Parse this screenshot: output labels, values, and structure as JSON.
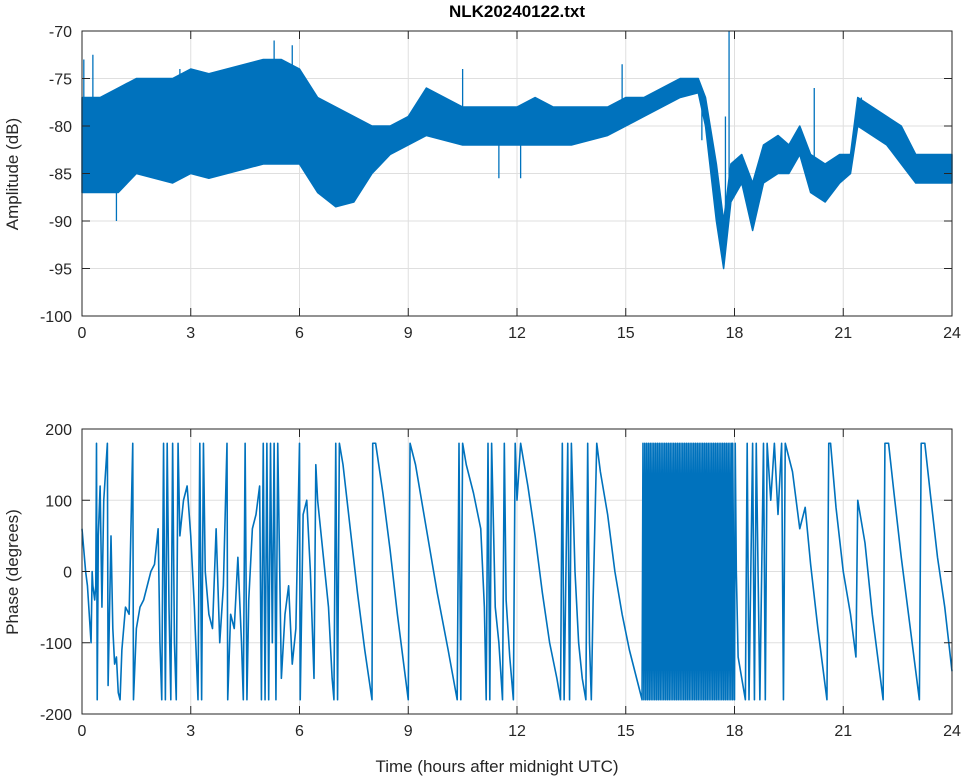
{
  "chart_data": [
    {
      "type": "area",
      "title": "NLK20240122.txt",
      "xlabel": "",
      "ylabel": "Amplitude (dB)",
      "xlim": [
        0,
        24
      ],
      "ylim": [
        -100,
        -70
      ],
      "xticks": [
        "0",
        "3",
        "6",
        "9",
        "12",
        "15",
        "18",
        "21",
        "24"
      ],
      "yticks": [
        "-70",
        "-75",
        "-80",
        "-85",
        "-90",
        "-95",
        "-100"
      ],
      "grid": true,
      "color": "#0072BD",
      "envelope": {
        "x": [
          0,
          0.5,
          1,
          1.5,
          2,
          2.5,
          3,
          3.5,
          4,
          4.5,
          5,
          5.5,
          6,
          6.5,
          7,
          7.5,
          8,
          8.5,
          9,
          9.5,
          10,
          10.5,
          11,
          11.5,
          12,
          12.5,
          13,
          13.5,
          14,
          14.5,
          15,
          15.5,
          16,
          16.5,
          17,
          17.2,
          17.5,
          17.7,
          17.9,
          18.2,
          18.5,
          18.8,
          19.2,
          19.5,
          19.8,
          20.1,
          20.5,
          20.9,
          21.2,
          21.4,
          21.8,
          22.2,
          22.6,
          23,
          23.5,
          24
        ],
        "upper": [
          -77,
          -77,
          -76,
          -75,
          -75,
          -75,
          -74,
          -74.5,
          -74,
          -73.5,
          -73,
          -73,
          -74,
          -77,
          -78,
          -79,
          -80,
          -80,
          -79,
          -76,
          -77,
          -78,
          -78,
          -78,
          -78,
          -77,
          -78,
          -78,
          -78,
          -78,
          -77,
          -77,
          -76,
          -75,
          -75,
          -77,
          -84,
          -90,
          -84,
          -83,
          -86,
          -82,
          -81,
          -82,
          -80,
          -83,
          -84,
          -83,
          -83,
          -77,
          -78,
          -79,
          -80,
          -83,
          -83,
          -83
        ],
        "lower": [
          -87,
          -87,
          -87,
          -85,
          -85.5,
          -86,
          -85,
          -85.5,
          -85,
          -84.5,
          -84,
          -84,
          -84,
          -87,
          -88.5,
          -88,
          -85,
          -83,
          -82,
          -81,
          -81.5,
          -82,
          -82,
          -82,
          -82,
          -82,
          -82,
          -82,
          -81.5,
          -81,
          -80,
          -79,
          -78,
          -77,
          -76.5,
          -80,
          -90,
          -95,
          -88,
          -86,
          -91,
          -86,
          -85,
          -85,
          -83,
          -87,
          -88,
          -86,
          -85,
          -80,
          -81,
          -82,
          -84,
          -86,
          -86,
          -86
        ]
      },
      "spikes": [
        [
          0.05,
          -73
        ],
        [
          0.3,
          -72.5
        ],
        [
          0.95,
          -90
        ],
        [
          2.7,
          -74
        ],
        [
          5.3,
          -71
        ],
        [
          5.8,
          -71.5
        ],
        [
          10.5,
          -74
        ],
        [
          11.5,
          -85.5
        ],
        [
          12.1,
          -85.5
        ],
        [
          14.9,
          -73.5
        ],
        [
          17.1,
          -81.5
        ],
        [
          17.85,
          -70
        ],
        [
          17.75,
          -79
        ],
        [
          20.2,
          -76
        ],
        [
          21.5,
          -77
        ]
      ]
    },
    {
      "type": "line",
      "title": "",
      "xlabel": "Time (hours after midnight UTC)",
      "ylabel": "Phase (degrees)",
      "xlim": [
        0,
        24
      ],
      "ylim": [
        -200,
        200
      ],
      "xticks": [
        "0",
        "3",
        "6",
        "9",
        "12",
        "15",
        "18",
        "21",
        "24"
      ],
      "yticks": [
        "200",
        "100",
        "0",
        "-100",
        "-200"
      ],
      "grid": true,
      "color": "#0072BD",
      "points": [
        [
          0,
          60
        ],
        [
          0.1,
          0
        ],
        [
          0.15,
          -20
        ],
        [
          0.2,
          -60
        ],
        [
          0.25,
          -100
        ],
        [
          0.28,
          0
        ],
        [
          0.3,
          -20
        ],
        [
          0.35,
          -40
        ],
        [
          0.38,
          -20
        ],
        [
          0.4,
          180
        ],
        [
          0.42,
          -180
        ],
        [
          0.45,
          50
        ],
        [
          0.5,
          120
        ],
        [
          0.55,
          -50
        ],
        [
          0.6,
          100
        ],
        [
          0.7,
          180
        ],
        [
          0.72,
          -160
        ],
        [
          0.8,
          50
        ],
        [
          0.85,
          -80
        ],
        [
          0.9,
          -130
        ],
        [
          0.95,
          -120
        ],
        [
          1.0,
          -170
        ],
        [
          1.05,
          -180
        ],
        [
          1.1,
          -110
        ],
        [
          1.2,
          -50
        ],
        [
          1.3,
          -60
        ],
        [
          1.4,
          180
        ],
        [
          1.42,
          -180
        ],
        [
          1.5,
          -80
        ],
        [
          1.6,
          -50
        ],
        [
          1.7,
          -40
        ],
        [
          1.8,
          -20
        ],
        [
          1.9,
          0
        ],
        [
          2.0,
          10
        ],
        [
          2.1,
          60
        ],
        [
          2.15,
          -100
        ],
        [
          2.2,
          -180
        ],
        [
          2.25,
          180
        ],
        [
          2.3,
          -180
        ],
        [
          2.35,
          180
        ],
        [
          2.4,
          -50
        ],
        [
          2.45,
          -180
        ],
        [
          2.5,
          180
        ],
        [
          2.55,
          -100
        ],
        [
          2.6,
          -180
        ],
        [
          2.65,
          180
        ],
        [
          2.7,
          50
        ],
        [
          2.8,
          100
        ],
        [
          2.9,
          120
        ],
        [
          3.0,
          50
        ],
        [
          3.1,
          -50
        ],
        [
          3.2,
          -180
        ],
        [
          3.25,
          180
        ],
        [
          3.3,
          -180
        ],
        [
          3.35,
          180
        ],
        [
          3.4,
          0
        ],
        [
          3.5,
          -60
        ],
        [
          3.6,
          -80
        ],
        [
          3.7,
          60
        ],
        [
          3.8,
          -100
        ],
        [
          3.9,
          -20
        ],
        [
          4.0,
          180
        ],
        [
          4.02,
          -180
        ],
        [
          4.1,
          -60
        ],
        [
          4.2,
          -80
        ],
        [
          4.3,
          20
        ],
        [
          4.4,
          -100
        ],
        [
          4.45,
          -180
        ],
        [
          4.5,
          180
        ],
        [
          4.55,
          -180
        ],
        [
          4.6,
          -40
        ],
        [
          4.7,
          60
        ],
        [
          4.8,
          80
        ],
        [
          4.9,
          120
        ],
        [
          4.95,
          -180
        ],
        [
          5.0,
          180
        ],
        [
          5.05,
          -180
        ],
        [
          5.1,
          180
        ],
        [
          5.15,
          -180
        ],
        [
          5.2,
          180
        ],
        [
          5.25,
          -100
        ],
        [
          5.3,
          180
        ],
        [
          5.35,
          -180
        ],
        [
          5.4,
          180
        ],
        [
          5.5,
          -150
        ],
        [
          5.6,
          -60
        ],
        [
          5.7,
          -20
        ],
        [
          5.8,
          -130
        ],
        [
          5.9,
          -80
        ],
        [
          6.0,
          180
        ],
        [
          6.02,
          -180
        ],
        [
          6.1,
          80
        ],
        [
          6.2,
          100
        ],
        [
          6.3,
          0
        ],
        [
          6.4,
          -150
        ],
        [
          6.45,
          150
        ],
        [
          6.5,
          100
        ],
        [
          6.6,
          50
        ],
        [
          6.7,
          0
        ],
        [
          6.8,
          -50
        ],
        [
          6.9,
          -150
        ],
        [
          6.95,
          -180
        ],
        [
          7.0,
          180
        ],
        [
          7.05,
          -180
        ],
        [
          7.1,
          180
        ],
        [
          7.2,
          150
        ],
        [
          7.4,
          60
        ],
        [
          7.6,
          -30
        ],
        [
          7.8,
          -110
        ],
        [
          8.0,
          -180
        ],
        [
          8.02,
          180
        ],
        [
          8.1,
          180
        ],
        [
          8.3,
          110
        ],
        [
          8.5,
          30
        ],
        [
          8.7,
          -60
        ],
        [
          8.9,
          -140
        ],
        [
          9.0,
          -180
        ],
        [
          9.05,
          180
        ],
        [
          9.2,
          150
        ],
        [
          9.5,
          60
        ],
        [
          9.8,
          -30
        ],
        [
          10.1,
          -110
        ],
        [
          10.35,
          -180
        ],
        [
          10.4,
          180
        ],
        [
          10.45,
          -180
        ],
        [
          10.5,
          180
        ],
        [
          10.6,
          150
        ],
        [
          10.8,
          110
        ],
        [
          11.0,
          60
        ],
        [
          11.1,
          -50
        ],
        [
          11.15,
          -180
        ],
        [
          11.2,
          180
        ],
        [
          11.25,
          -180
        ],
        [
          11.3,
          180
        ],
        [
          11.4,
          -50
        ],
        [
          11.5,
          -100
        ],
        [
          11.6,
          -180
        ],
        [
          11.65,
          180
        ],
        [
          11.7,
          -40
        ],
        [
          11.8,
          -120
        ],
        [
          11.9,
          -180
        ],
        [
          11.95,
          180
        ],
        [
          12.0,
          100
        ],
        [
          12.1,
          180
        ],
        [
          12.3,
          120
        ],
        [
          12.5,
          50
        ],
        [
          12.7,
          -30
        ],
        [
          12.9,
          -100
        ],
        [
          13.1,
          -150
        ],
        [
          13.2,
          -180
        ],
        [
          13.25,
          180
        ],
        [
          13.3,
          -180
        ],
        [
          13.4,
          180
        ],
        [
          13.45,
          -180
        ],
        [
          13.5,
          180
        ],
        [
          13.6,
          0
        ],
        [
          13.7,
          -100
        ],
        [
          13.8,
          -150
        ],
        [
          13.9,
          -180
        ],
        [
          13.95,
          180
        ],
        [
          14.0,
          -100
        ],
        [
          14.05,
          -180
        ],
        [
          14.1,
          -40
        ],
        [
          14.2,
          180
        ],
        [
          14.3,
          140
        ],
        [
          14.5,
          80
        ],
        [
          14.7,
          0
        ],
        [
          14.9,
          -60
        ],
        [
          15.1,
          -110
        ],
        [
          15.3,
          -150
        ],
        [
          15.45,
          -180
        ]
      ],
      "dense_wrap_region": {
        "x_start": 15.45,
        "x_end": 17.95,
        "step_hours": 0.025,
        "ylim": [
          -180,
          180
        ]
      },
      "points_after": [
        [
          17.95,
          180
        ],
        [
          18.0,
          -180
        ],
        [
          18.02,
          180
        ],
        [
          18.05,
          0
        ],
        [
          18.1,
          -120
        ],
        [
          18.2,
          -150
        ],
        [
          18.3,
          -180
        ],
        [
          18.35,
          180
        ],
        [
          18.4,
          -180
        ],
        [
          18.5,
          180
        ],
        [
          18.55,
          -180
        ],
        [
          18.6,
          180
        ],
        [
          18.7,
          -180
        ],
        [
          18.8,
          180
        ],
        [
          18.85,
          -180
        ],
        [
          18.9,
          180
        ],
        [
          19.0,
          100
        ],
        [
          19.1,
          180
        ],
        [
          19.2,
          80
        ],
        [
          19.3,
          180
        ],
        [
          19.35,
          -180
        ],
        [
          19.4,
          180
        ],
        [
          19.6,
          140
        ],
        [
          19.8,
          60
        ],
        [
          19.95,
          90
        ],
        [
          20.1,
          10
        ],
        [
          20.3,
          -80
        ],
        [
          20.5,
          -160
        ],
        [
          20.55,
          -180
        ],
        [
          20.6,
          180
        ],
        [
          20.65,
          180
        ],
        [
          20.8,
          90
        ],
        [
          21.0,
          0
        ],
        [
          21.2,
          -60
        ],
        [
          21.35,
          -120
        ],
        [
          21.4,
          100
        ],
        [
          21.6,
          40
        ],
        [
          21.8,
          -60
        ],
        [
          22.0,
          -140
        ],
        [
          22.1,
          -180
        ],
        [
          22.15,
          180
        ],
        [
          22.25,
          180
        ],
        [
          22.4,
          110
        ],
        [
          22.6,
          20
        ],
        [
          22.8,
          -60
        ],
        [
          23.0,
          -140
        ],
        [
          23.1,
          -180
        ],
        [
          23.15,
          180
        ],
        [
          23.25,
          180
        ],
        [
          23.4,
          110
        ],
        [
          23.6,
          20
        ],
        [
          23.8,
          -50
        ],
        [
          24.0,
          -140
        ]
      ]
    }
  ]
}
